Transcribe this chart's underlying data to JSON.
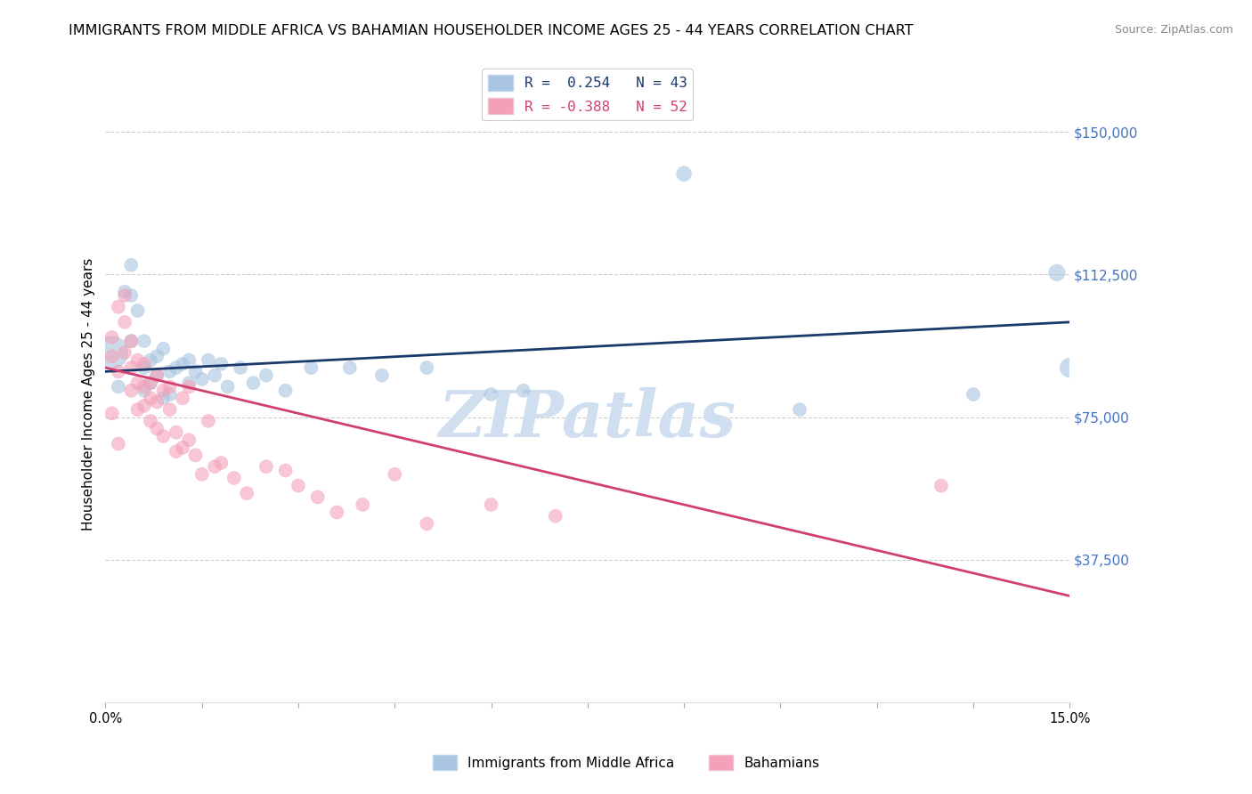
{
  "title": "IMMIGRANTS FROM MIDDLE AFRICA VS BAHAMIAN HOUSEHOLDER INCOME AGES 25 - 44 YEARS CORRELATION CHART",
  "source": "Source: ZipAtlas.com",
  "ylabel": "Householder Income Ages 25 - 44 years",
  "ytick_labels": [
    "$37,500",
    "$75,000",
    "$112,500",
    "$150,000"
  ],
  "ytick_values": [
    37500,
    75000,
    112500,
    150000
  ],
  "ylim": [
    0,
    162000
  ],
  "xlim": [
    0.0,
    0.15
  ],
  "watermark": "ZIPatlas",
  "legend_blue_r": "0.254",
  "legend_blue_n": "43",
  "legend_pink_r": "-0.388",
  "legend_pink_n": "52",
  "legend_label_blue": "Immigrants from Middle Africa",
  "legend_label_pink": "Bahamians",
  "blue_color": "#A8C4E0",
  "pink_color": "#F4A0B8",
  "line_blue_color": "#1A3A6B",
  "line_pink_color": "#D04070",
  "ytick_color": "#4472C4",
  "title_fontsize": 11.5,
  "source_fontsize": 9,
  "ylabel_fontsize": 11,
  "watermark_fontsize": 52,
  "watermark_color": "#D0DFF0",
  "grid_color": "#CCCCCC",
  "background_color": "#FFFFFF",
  "blue_line_y0": 87000,
  "blue_line_y1": 100000,
  "pink_line_y0": 88000,
  "pink_line_y1": 28000,
  "scatter_blue": {
    "x": [
      0.001,
      0.002,
      0.003,
      0.004,
      0.004,
      0.005,
      0.006,
      0.006,
      0.007,
      0.007,
      0.008,
      0.008,
      0.009,
      0.009,
      0.01,
      0.011,
      0.012,
      0.013,
      0.013,
      0.014,
      0.015,
      0.016,
      0.017,
      0.018,
      0.019,
      0.021,
      0.023,
      0.025,
      0.028,
      0.032,
      0.038,
      0.043,
      0.05,
      0.06,
      0.065,
      0.09,
      0.108,
      0.135,
      0.148,
      0.15,
      0.004,
      0.006,
      0.01
    ],
    "y": [
      92000,
      83000,
      108000,
      115000,
      107000,
      103000,
      95000,
      88000,
      90000,
      84000,
      91000,
      86000,
      93000,
      80000,
      87000,
      88000,
      89000,
      90000,
      84000,
      87000,
      85000,
      90000,
      86000,
      89000,
      83000,
      88000,
      84000,
      86000,
      82000,
      88000,
      88000,
      86000,
      88000,
      81000,
      82000,
      139000,
      77000,
      81000,
      113000,
      88000,
      95000,
      82000,
      81000
    ],
    "sizes": [
      700,
      120,
      120,
      120,
      120,
      120,
      120,
      120,
      120,
      120,
      120,
      120,
      120,
      120,
      120,
      120,
      120,
      120,
      120,
      120,
      120,
      120,
      120,
      120,
      120,
      120,
      120,
      120,
      120,
      120,
      120,
      120,
      120,
      120,
      120,
      150,
      120,
      120,
      180,
      250,
      120,
      120,
      120
    ]
  },
  "scatter_pink": {
    "x": [
      0.001,
      0.001,
      0.002,
      0.002,
      0.003,
      0.003,
      0.003,
      0.004,
      0.004,
      0.004,
      0.005,
      0.005,
      0.005,
      0.006,
      0.006,
      0.006,
      0.007,
      0.007,
      0.007,
      0.008,
      0.008,
      0.008,
      0.009,
      0.009,
      0.01,
      0.01,
      0.011,
      0.011,
      0.012,
      0.012,
      0.013,
      0.013,
      0.014,
      0.015,
      0.016,
      0.017,
      0.018,
      0.02,
      0.022,
      0.025,
      0.028,
      0.03,
      0.033,
      0.036,
      0.04,
      0.045,
      0.05,
      0.06,
      0.07,
      0.13,
      0.001,
      0.002
    ],
    "y": [
      96000,
      91000,
      104000,
      87000,
      107000,
      100000,
      92000,
      95000,
      88000,
      82000,
      90000,
      84000,
      77000,
      89000,
      83000,
      78000,
      84000,
      80000,
      74000,
      86000,
      79000,
      72000,
      82000,
      70000,
      83000,
      77000,
      71000,
      66000,
      80000,
      67000,
      83000,
      69000,
      65000,
      60000,
      74000,
      62000,
      63000,
      59000,
      55000,
      62000,
      61000,
      57000,
      54000,
      50000,
      52000,
      60000,
      47000,
      52000,
      49000,
      57000,
      76000,
      68000
    ],
    "sizes": [
      120,
      120,
      120,
      120,
      120,
      120,
      120,
      120,
      120,
      120,
      120,
      120,
      120,
      120,
      120,
      120,
      120,
      120,
      120,
      120,
      120,
      120,
      120,
      120,
      120,
      120,
      120,
      120,
      120,
      120,
      120,
      120,
      120,
      120,
      120,
      120,
      120,
      120,
      120,
      120,
      120,
      120,
      120,
      120,
      120,
      120,
      120,
      120,
      120,
      120,
      120,
      120
    ]
  }
}
